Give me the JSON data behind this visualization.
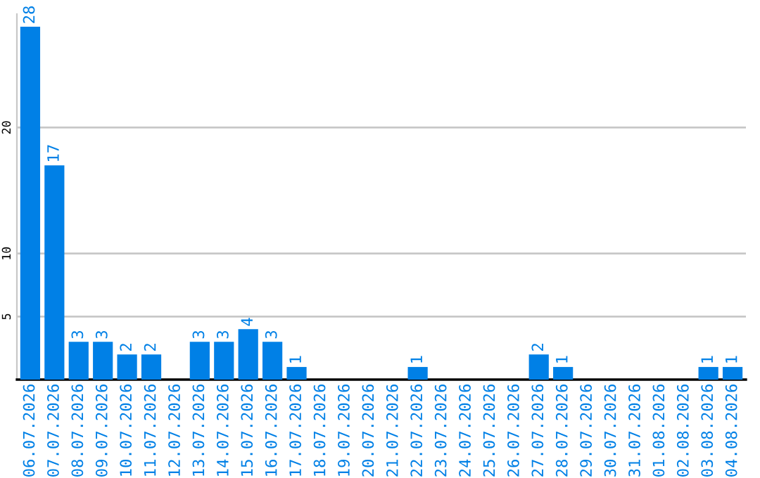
{
  "chart_data": {
    "type": "bar",
    "categories": [
      "06.07.2026",
      "07.07.2026",
      "08.07.2026",
      "09.07.2026",
      "10.07.2026",
      "11.07.2026",
      "12.07.2026",
      "13.07.2026",
      "14.07.2026",
      "15.07.2026",
      "16.07.2026",
      "17.07.2026",
      "18.07.2026",
      "19.07.2026",
      "20.07.2026",
      "21.07.2026",
      "22.07.2026",
      "23.07.2026",
      "24.07.2026",
      "25.07.2026",
      "26.07.2026",
      "27.07.2026",
      "28.07.2026",
      "29.07.2026",
      "30.07.2026",
      "31.07.2026",
      "01.08.2026",
      "02.08.2026",
      "03.08.2026",
      "04.08.2026"
    ],
    "values": [
      28,
      17,
      3,
      3,
      2,
      2,
      0,
      3,
      3,
      4,
      3,
      1,
      0,
      0,
      0,
      0,
      1,
      0,
      0,
      0,
      0,
      2,
      1,
      0,
      0,
      0,
      0,
      0,
      1,
      1
    ],
    "value_labels": [
      "28",
      "17",
      "3",
      "3",
      "2",
      "2",
      null,
      "3",
      "3",
      "4",
      "3",
      "1",
      null,
      null,
      null,
      null,
      "1",
      null,
      null,
      null,
      null,
      "2",
      "1",
      null,
      null,
      null,
      null,
      null,
      "1",
      "1"
    ],
    "color": "#0080e6",
    "ylim": [
      0,
      29
    ],
    "yticks": [
      5,
      10,
      20
    ],
    "grid": "y",
    "legend": false
  }
}
